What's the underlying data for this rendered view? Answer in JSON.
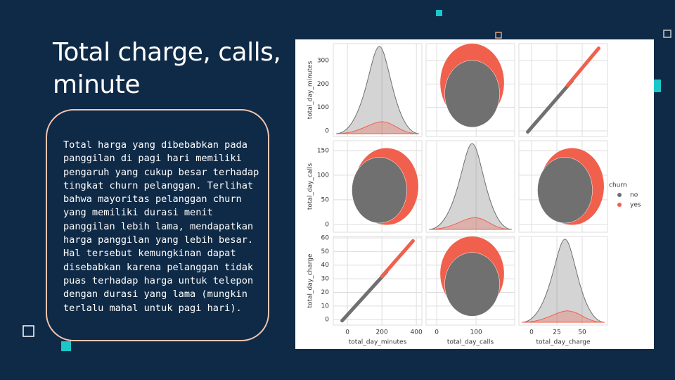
{
  "title": "Total charge, calls, minute",
  "body": "Total harga yang dibebabkan pada panggilan di pagi hari memiliki pengaruh yang cukup besar terhadap tingkat churn pelanggan. Terlihat bahwa mayoritas pelanggan churn yang memiliki durasi menit panggilan lebih lama, mendapatkan harga panggilan yang lebih besar. Hal tersebut kemungkinan dapat disebabkan karena pelanggan tidak puas terhadap harga untuk telepon dengan durasi yang lama (mungkin terlalu mahal untuk pagi hari).",
  "pairplot": {
    "variables": [
      {
        "name": "total_day_minutes",
        "xlim": [
          -82,
          432
        ],
        "ylim": [
          -24,
          372
        ],
        "xticks": [
          0,
          200,
          400
        ],
        "yticks": [
          0,
          100,
          200,
          300
        ]
      },
      {
        "name": "total_day_calls",
        "xlim": [
          -27,
          198
        ],
        "ylim": [
          -16,
          170
        ],
        "xticks": [
          0,
          100
        ],
        "yticks": [
          0,
          50,
          100,
          150
        ]
      },
      {
        "name": "total_day_charge",
        "xlim": [
          -12.5,
          75
        ],
        "ylim": [
          -4,
          61
        ],
        "xticks": [
          0,
          25,
          50
        ],
        "yticks": [
          0,
          10,
          20,
          30,
          40,
          50,
          60
        ]
      }
    ],
    "legend": {
      "title": "churn",
      "entries": [
        {
          "name": "no",
          "color": "#707070"
        },
        {
          "name": "yes",
          "color": "#f0604d"
        }
      ]
    }
  }
}
